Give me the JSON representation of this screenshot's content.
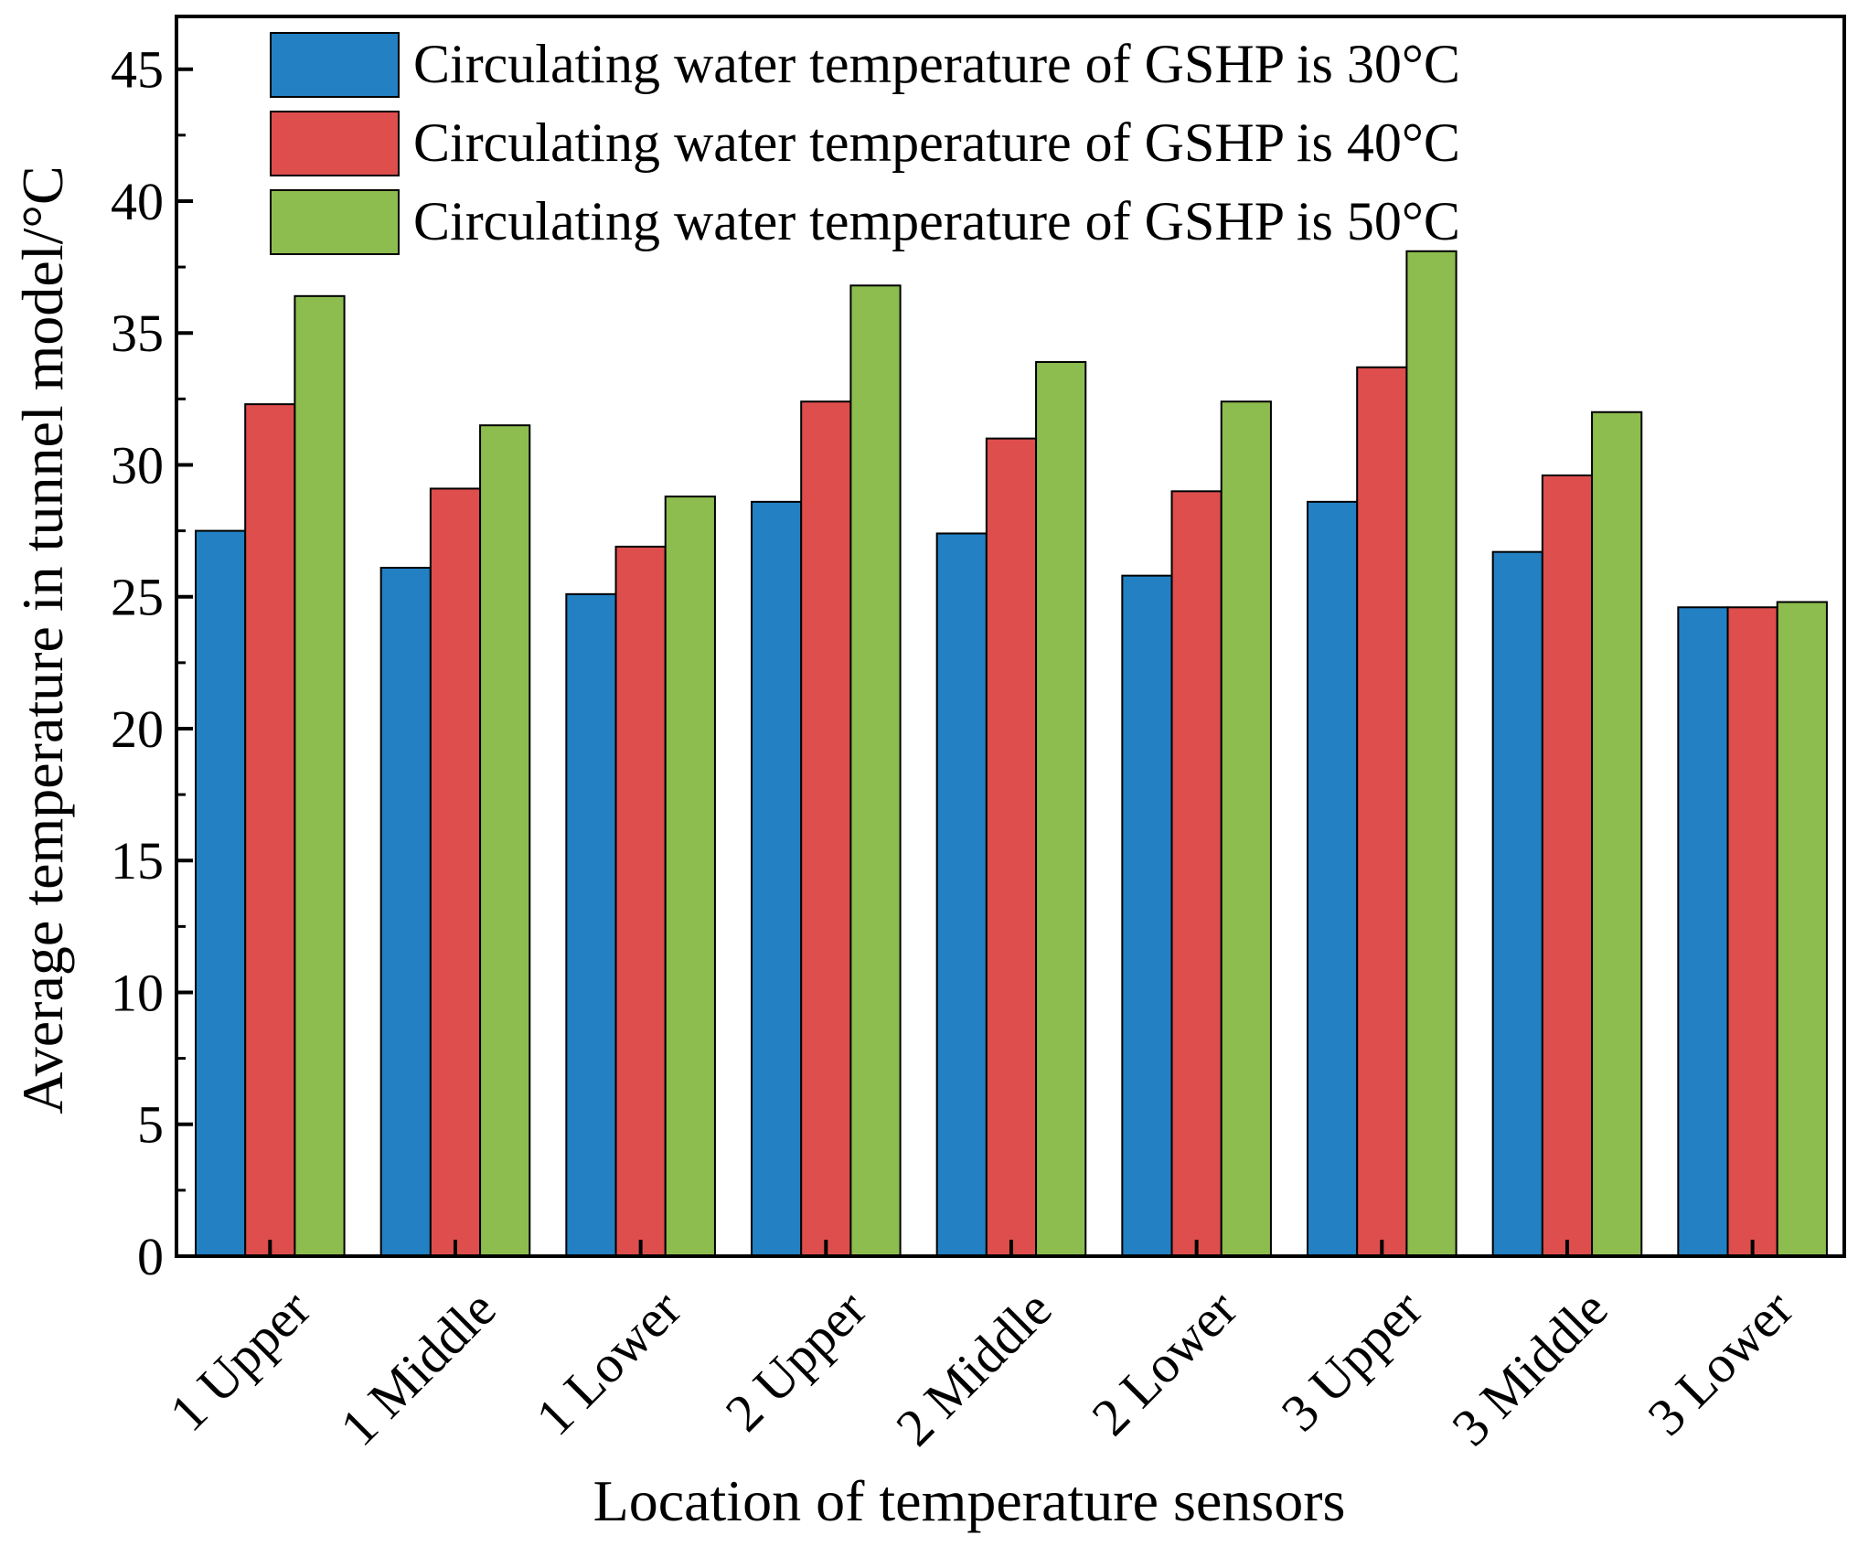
{
  "chart_data": {
    "type": "bar",
    "title": "",
    "xlabel": "Location of temperature sensors",
    "ylabel": "Average temperature in tunnel model/°C",
    "ylim": [
      0,
      47
    ],
    "yticks": [
      0,
      5,
      10,
      15,
      20,
      25,
      30,
      35,
      40,
      45
    ],
    "grid": false,
    "legend_position": "top-right",
    "categories": [
      "1 Upper",
      "1 Middle",
      "1 Lower",
      "2 Upper",
      "2 Middle",
      "2 Lower",
      "3 Upper",
      "3 Middle",
      "3 Lower"
    ],
    "series": [
      {
        "name": "Circulating water temperature of GSHP is 30°C",
        "color": "#2280c3",
        "values": [
          27.5,
          26.1,
          25.1,
          28.6,
          27.4,
          25.8,
          28.6,
          26.7,
          24.6
        ]
      },
      {
        "name": "Circulating water temperature of GSHP is 40°C",
        "color": "#dd4e4d",
        "values": [
          32.3,
          29.1,
          26.9,
          32.4,
          31.0,
          29.0,
          33.7,
          29.6,
          24.6
        ]
      },
      {
        "name": "Circulating water temperature of GSHP is 50°C",
        "color": "#8dbc4f",
        "values": [
          36.4,
          31.5,
          28.8,
          36.8,
          33.9,
          32.4,
          38.1,
          32.0,
          24.8
        ]
      }
    ]
  }
}
